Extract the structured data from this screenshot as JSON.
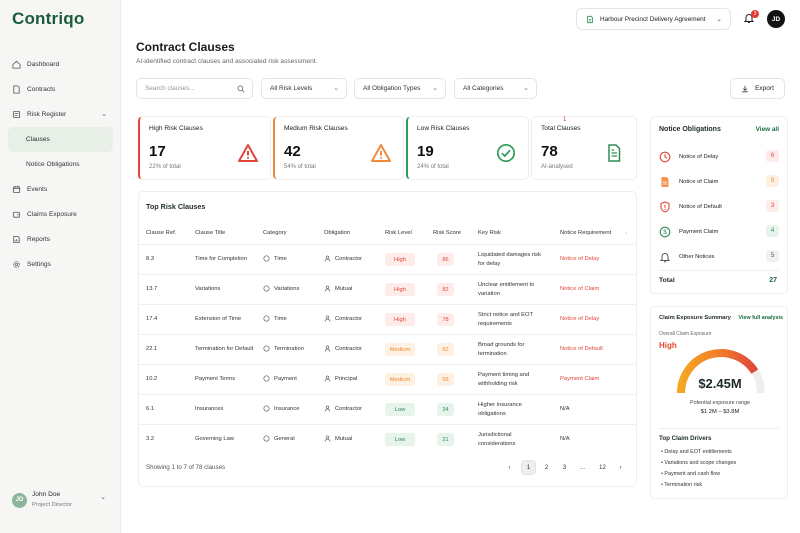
{
  "app": {
    "logo": "Contriqo"
  },
  "sidebar": {
    "items": [
      {
        "label": "Dashboard",
        "icon": "home-icon"
      },
      {
        "label": "Contracts",
        "icon": "document-icon"
      },
      {
        "label": "Risk Register",
        "icon": "register-icon"
      },
      {
        "label": "Clauses",
        "icon": ""
      },
      {
        "label": "Notice Obligations",
        "icon": ""
      },
      {
        "label": "Events",
        "icon": "calendar-icon"
      },
      {
        "label": "Claims Exposure",
        "icon": "wallet-icon"
      },
      {
        "label": "Reports",
        "icon": "chart-icon"
      },
      {
        "label": "Settings",
        "icon": "gear-icon"
      }
    ],
    "user": {
      "initials": "JD",
      "name": "John Doe",
      "role": "Project Director"
    }
  },
  "topbar": {
    "agreement": "Harbour Precinct Delivery Agreement",
    "notif_count": "3",
    "avatar": "JD"
  },
  "page": {
    "title": "Contract Clauses",
    "subtitle": "AI-identified contract clauses and associated risk assessment."
  },
  "filters": {
    "search_placeholder": "Search clauses...",
    "risk": "All Risk Levels",
    "obligation": "All Obligation Types",
    "category": "All Categories",
    "export": "Export"
  },
  "cards": [
    {
      "label": "High Risk Clauses",
      "value": "17",
      "pct": "22% of total",
      "color": "#e0473a"
    },
    {
      "label": "Medium Risk Clauses",
      "value": "42",
      "pct": "54% of total",
      "color": "#f08a3c"
    },
    {
      "label": "Low Risk Clauses",
      "value": "19",
      "pct": "24% of total",
      "color": "#2e9b57"
    },
    {
      "label": "Total Clauses",
      "value": "78",
      "pct": "AI-analysed",
      "color": "#2e8b57",
      "marker": "1"
    }
  ],
  "table": {
    "title": "Top Risk Clauses",
    "headers": [
      "Clause Ref.",
      "Clause Title",
      "Category",
      "Obligation",
      "Risk Level",
      "Risk Score",
      "Key Risk",
      "Notice Requirement"
    ],
    "rows": [
      {
        "ref": "8.3",
        "title": "Time for Completion",
        "category": "Time",
        "obligation": "Contractor",
        "level": "High",
        "score": "86",
        "risk1": "Liquidated damages risk",
        "risk2": "for delay",
        "notice": "Notice of Delay"
      },
      {
        "ref": "13.7",
        "title": "Variations",
        "category": "Variations",
        "obligation": "Mutual",
        "level": "High",
        "score": "82",
        "risk1": "Unclear entitlement to",
        "risk2": "variation",
        "notice": "Notice of Claim"
      },
      {
        "ref": "17.4",
        "title": "Extension of Time",
        "category": "Time",
        "obligation": "Contractor",
        "level": "High",
        "score": "78",
        "risk1": "Strict notice and EOT",
        "risk2": "requirements",
        "notice": "Notice of Delay"
      },
      {
        "ref": "22.1",
        "title": "Termination for Default",
        "category": "Termination",
        "obligation": "Contractor",
        "level": "Medium",
        "score": "62",
        "risk1": "Broad grounds for",
        "risk2": "termination",
        "notice": "Notice of Default"
      },
      {
        "ref": "10.2",
        "title": "Payment Terms",
        "category": "Payment",
        "obligation": "Principal",
        "level": "Medium",
        "score": "58",
        "risk1": "Payment timing and",
        "risk2": "withholding risk",
        "notice": "Payment Claim"
      },
      {
        "ref": "6.1",
        "title": "Insurances",
        "category": "Insurance",
        "obligation": "Contractor",
        "level": "Low",
        "score": "34",
        "risk1": "Higher insurance",
        "risk2": "obligations",
        "notice": "N/A"
      },
      {
        "ref": "3.2",
        "title": "Governing Law",
        "category": "General",
        "obligation": "Mutual",
        "level": "Low",
        "score": "21",
        "risk1": "Jurisdictional",
        "risk2": "considerations",
        "notice": "N/A"
      }
    ],
    "showing": "Showing 1 to 7 of 78 clauses",
    "pages": [
      "‹",
      "1",
      "2",
      "3",
      "...",
      "12",
      "›"
    ]
  },
  "notices": {
    "title": "Notice Obligations",
    "view_all": "View all",
    "items": [
      {
        "label": "Notice of Delay",
        "count": "6",
        "color": "#e0473a",
        "bg": "#fdecea",
        "icon": "clock-icon"
      },
      {
        "label": "Notice of Claim",
        "count": "9",
        "color": "#f08a3c",
        "bg": "#fef1e4",
        "icon": "file-icon"
      },
      {
        "label": "Notice of Default",
        "count": "3",
        "color": "#e0473a",
        "bg": "#fdecea",
        "icon": "shield-icon"
      },
      {
        "label": "Payment Claim",
        "count": "4",
        "color": "#2e8b57",
        "bg": "#e7f4ec",
        "icon": "dollar-icon"
      },
      {
        "label": "Other Notices",
        "count": "5",
        "color": "#555555",
        "bg": "#f0f0f0",
        "icon": "bell-icon"
      }
    ],
    "total_label": "Total",
    "total": "27"
  },
  "exposure": {
    "title": "Claim Exposure Summary",
    "view": "View full analysis",
    "overall_label": "Overall Claim Exposure",
    "level": "High",
    "gauge_value": 0.82,
    "amount": "$2.45M",
    "range_label": "Potential exposure range",
    "range": "$1.2M – $3.8M",
    "drivers_title": "Top Claim Drivers",
    "drivers": [
      "Delay and EOT entitlements",
      "Variations and scope changes",
      "Payment and cash flow",
      "Termination risk"
    ]
  }
}
